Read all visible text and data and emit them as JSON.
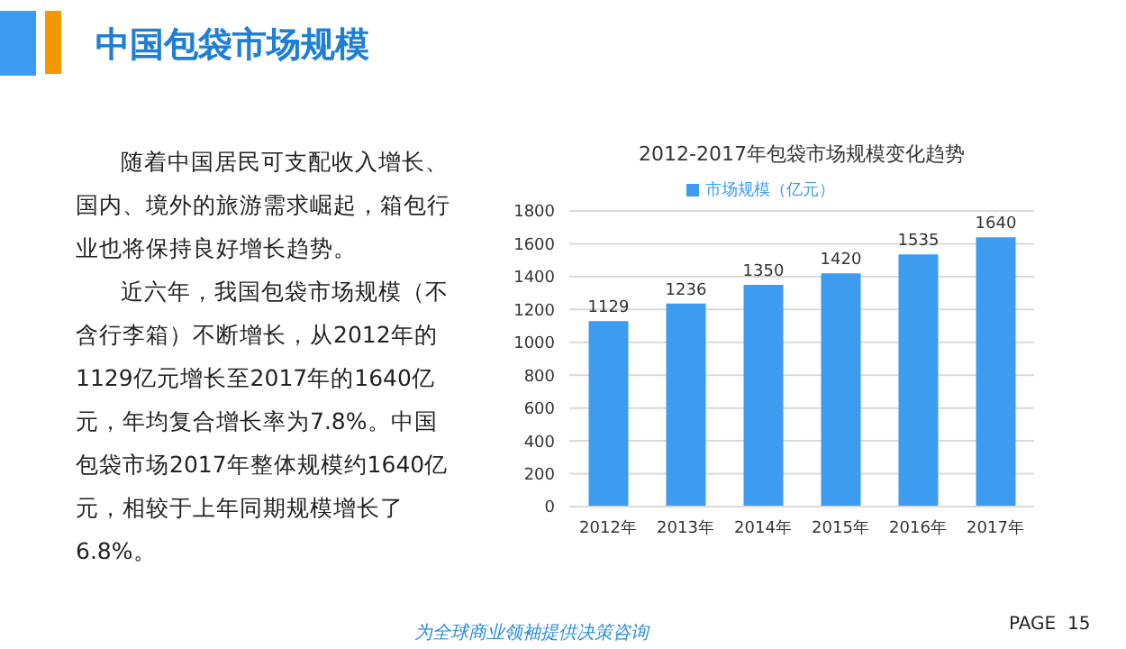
{
  "chart_data": [
    {
      "type": "other",
      "title": "中国包袋市场规模",
      "annotations": [
        "随着中国居民可支配收入增长、国内、境外的旅游需求崛起，箱包行业也将保持良好增长趋势。",
        "近六年，我国包袋市场规模（不含行李箱）不断增长，从2012年的1129亿元增长至2017年的1640亿元，年均复合增长率为7.8%。中国包袋市场2017年整体规模约1640亿元，相较于上年同期规模增长了6.8%。",
        "为全球商业领袖提供决策咨询",
        "PAGE  15"
      ]
    },
    {
      "type": "bar",
      "title": "2012-2017年包袋市场规模变化趋势",
      "categories": [
        "2012年",
        "2013年",
        "2014年",
        "2015年",
        "2016年",
        "2017年"
      ],
      "series": [
        {
          "name": "市场规模（亿元）",
          "color": "#3d9cf0",
          "values": [
            1129,
            1236,
            1350,
            1420,
            1535,
            1640
          ]
        }
      ],
      "ylim": [
        0,
        1800
      ],
      "yticks": [
        0,
        200,
        400,
        600,
        800,
        1000,
        1200,
        1400,
        1600,
        1800
      ],
      "grid": "y",
      "legend": "top",
      "data_labels": true
    }
  ]
}
